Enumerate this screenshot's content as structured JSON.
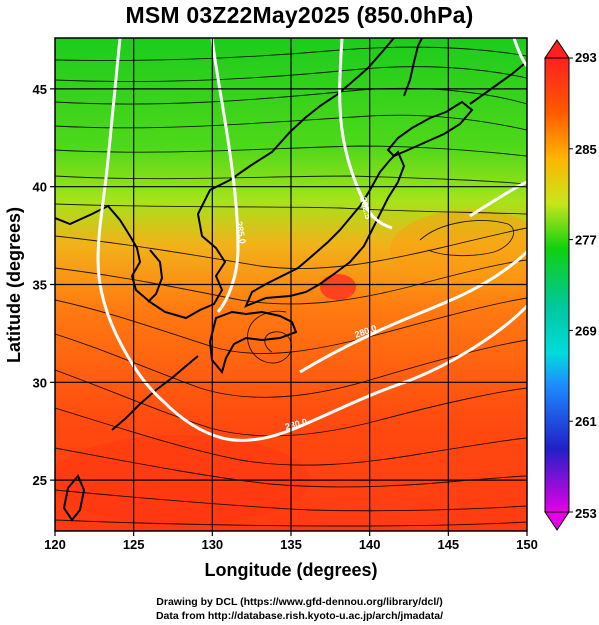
{
  "title": "MSM 03Z22May2025 (850.0hPa)",
  "xaxis": {
    "label": "Longitude (degrees)",
    "range": [
      120,
      150
    ],
    "ticks": [
      120,
      125,
      130,
      135,
      140,
      145,
      150
    ]
  },
  "yaxis": {
    "label": "Latitude  (degrees)",
    "range": [
      22.4,
      47.6
    ],
    "ticks": [
      25,
      30,
      35,
      40,
      45
    ]
  },
  "colorbar": {
    "range": [
      253,
      293
    ],
    "ticks": [
      "293",
      "285",
      "277",
      "269",
      "261",
      "253"
    ],
    "colors": [
      "#e600e6",
      "#2020c8",
      "#1e8cff",
      "#00dcdc",
      "#10d010",
      "#c8e61a",
      "#ffb400",
      "#ff5a00",
      "#ff2020"
    ]
  },
  "contour_labels": [
    "285.0",
    "282.5",
    "280.0",
    "280.0"
  ],
  "colors": {
    "background": "#ffffff",
    "contour": "#ffffff",
    "coast": "#000000",
    "streamline": "#000000"
  },
  "credits": [
    "Drawing by DCL (https://www.gfd-dennou.org/library/dcl/)",
    "Data from http://database.rish.kyoto-u.ac.jp/arch/jmadata/"
  ]
}
